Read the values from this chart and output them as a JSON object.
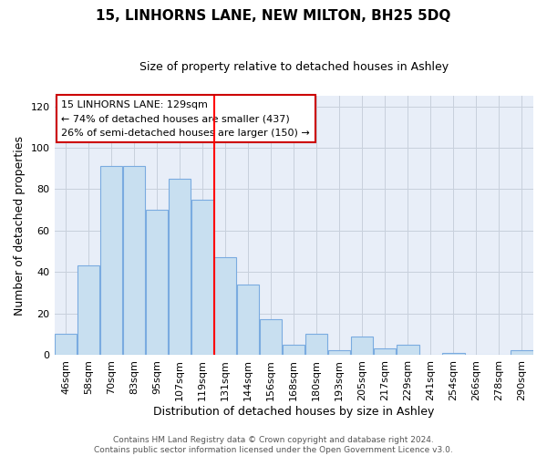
{
  "title": "15, LINHORNS LANE, NEW MILTON, BH25 5DQ",
  "subtitle": "Size of property relative to detached houses in Ashley",
  "xlabel": "Distribution of detached houses by size in Ashley",
  "ylabel": "Number of detached properties",
  "footer_lines": [
    "Contains HM Land Registry data © Crown copyright and database right 2024.",
    "Contains public sector information licensed under the Open Government Licence v3.0."
  ],
  "bin_labels": [
    "46sqm",
    "58sqm",
    "70sqm",
    "83sqm",
    "95sqm",
    "107sqm",
    "119sqm",
    "131sqm",
    "144sqm",
    "156sqm",
    "168sqm",
    "180sqm",
    "193sqm",
    "205sqm",
    "217sqm",
    "229sqm",
    "241sqm",
    "254sqm",
    "266sqm",
    "278sqm",
    "290sqm"
  ],
  "bar_values": [
    10,
    43,
    91,
    91,
    70,
    85,
    75,
    47,
    34,
    17,
    5,
    10,
    2,
    9,
    3,
    5,
    0,
    1,
    0,
    0,
    2
  ],
  "bar_color": "#c8dff0",
  "bar_edge_color": "#7aabe0",
  "vline_x_index": 7,
  "vline_color": "red",
  "annotation_title": "15 LINHORNS LANE: 129sqm",
  "annotation_line1": "← 74% of detached houses are smaller (437)",
  "annotation_line2": "26% of semi-detached houses are larger (150) →",
  "annotation_box_facecolor": "#ffffff",
  "annotation_box_edgecolor": "#cc0000",
  "ylim": [
    0,
    125
  ],
  "yticks": [
    0,
    20,
    40,
    60,
    80,
    100,
    120
  ],
  "plot_bg_color": "#e8eef8",
  "grid_color": "#c8d0dc",
  "title_fontsize": 11,
  "subtitle_fontsize": 9,
  "axis_label_fontsize": 9,
  "tick_fontsize": 8,
  "footer_fontsize": 6.5
}
